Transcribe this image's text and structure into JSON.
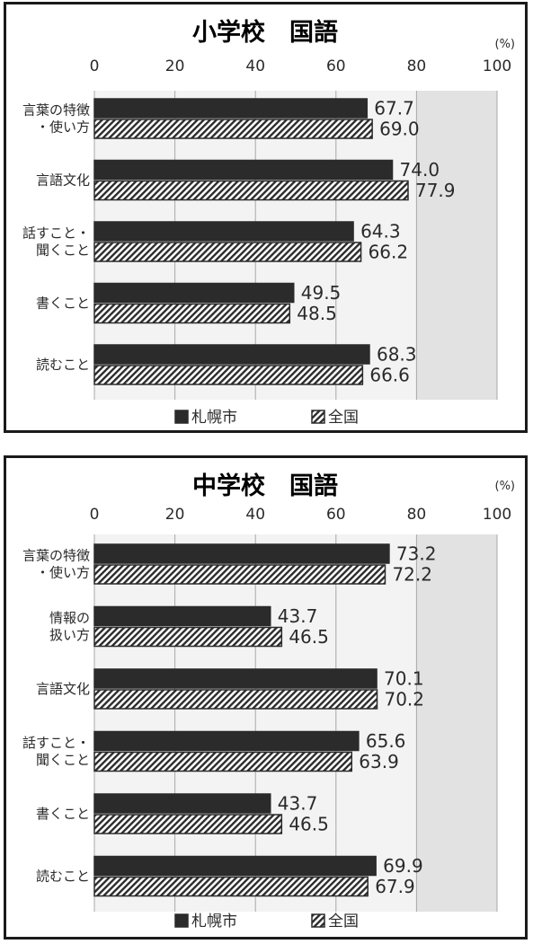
{
  "chart_data": [
    {
      "type": "bar",
      "orientation": "horizontal",
      "title": "小学校　国語",
      "unit_label": "(%)",
      "xlim": [
        0,
        100
      ],
      "ticks": [
        "0",
        "20",
        "40",
        "60",
        "80",
        "100"
      ],
      "categories": [
        [
          "言葉の特徴",
          "・使い方"
        ],
        [
          "言語文化"
        ],
        [
          "話すこと・",
          "聞くこと"
        ],
        [
          "書くこと"
        ],
        [
          "読むこと"
        ]
      ],
      "series": [
        {
          "name": "札幌市",
          "values": [
            67.7,
            74.0,
            64.3,
            49.5,
            68.3
          ],
          "labels": [
            "67.7",
            "74.0",
            "64.3",
            "49.5",
            "68.3"
          ],
          "color": "#2b2b2b",
          "pattern": "solid"
        },
        {
          "name": "全国",
          "values": [
            69.0,
            77.9,
            66.2,
            48.5,
            66.6
          ],
          "labels": [
            "69.0",
            "77.9",
            "66.2",
            "48.5",
            "66.6"
          ],
          "color": "#2b2b2b",
          "pattern": "hatch"
        }
      ],
      "legend_position": "bottom",
      "grid": true,
      "shaded_band": [
        80,
        100
      ]
    },
    {
      "type": "bar",
      "orientation": "horizontal",
      "title": "中学校　国語",
      "unit_label": "(%)",
      "xlim": [
        0,
        100
      ],
      "ticks": [
        "0",
        "20",
        "40",
        "60",
        "80",
        "100"
      ],
      "categories": [
        [
          "言葉の特徴",
          "・使い方"
        ],
        [
          "情報の",
          "扱い方"
        ],
        [
          "言語文化"
        ],
        [
          "話すこと・",
          "聞くこと"
        ],
        [
          "書くこと"
        ],
        [
          "読むこと"
        ]
      ],
      "series": [
        {
          "name": "札幌市",
          "values": [
            73.2,
            43.7,
            70.1,
            65.6,
            43.7,
            69.9
          ],
          "labels": [
            "73.2",
            "43.7",
            "70.1",
            "65.6",
            "43.7",
            "69.9"
          ],
          "color": "#2b2b2b",
          "pattern": "solid"
        },
        {
          "name": "全国",
          "values": [
            72.2,
            46.5,
            70.2,
            63.9,
            46.5,
            67.9
          ],
          "labels": [
            "72.2",
            "46.5",
            "70.2",
            "63.9",
            "46.5",
            "67.9"
          ],
          "color": "#2b2b2b",
          "pattern": "hatch"
        }
      ],
      "legend_position": "bottom",
      "grid": true,
      "shaded_band": [
        80,
        100
      ]
    }
  ]
}
